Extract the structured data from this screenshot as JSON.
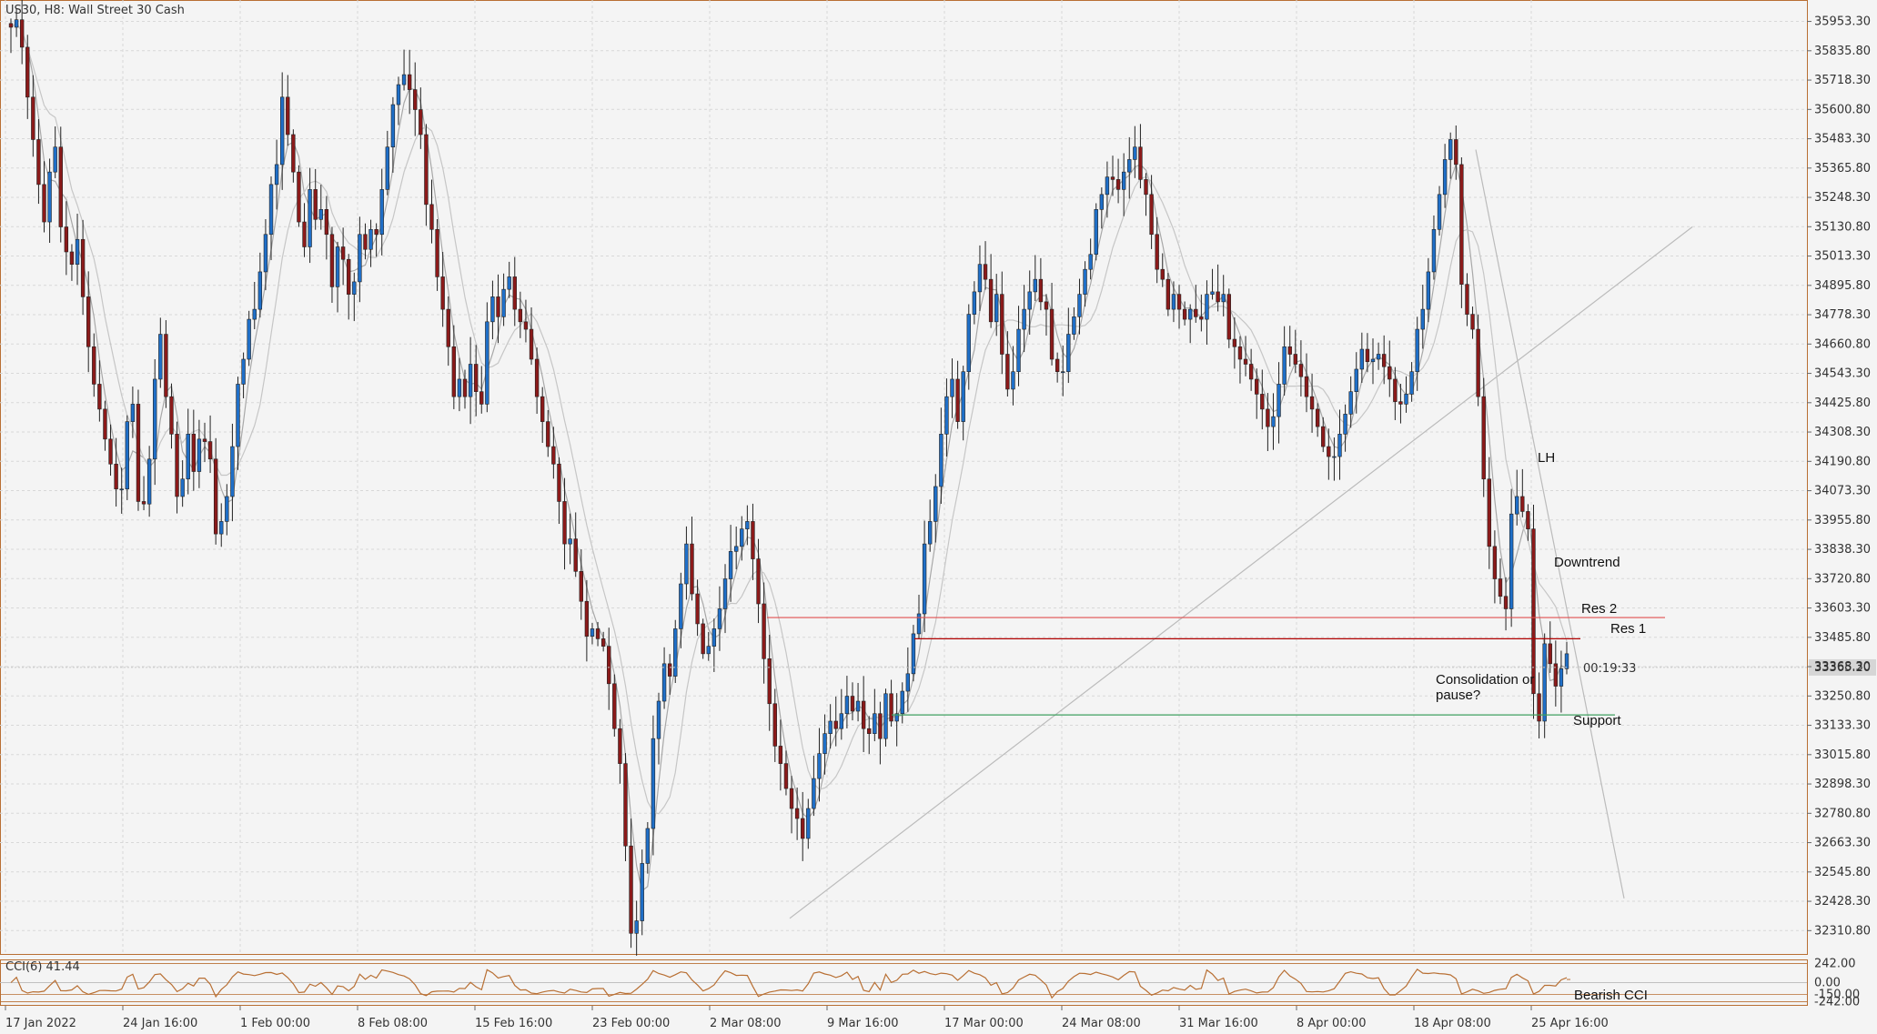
{
  "header": {
    "symbol_label": "US30, H8:  Wall Street 30 Cash"
  },
  "colors": {
    "bull": "#1f6fc8",
    "bear": "#8b1a1a",
    "grid": "#d8d8d8",
    "frame": "#b86f33",
    "ma": "#9a9a9a",
    "cci": "#b86f33",
    "res2": "#e05050",
    "res1": "#b00000",
    "support": "#3fa060",
    "trend": "#bbbbbb"
  },
  "chart_data": {
    "type": "candlestick",
    "y_ticks": [
      "35953.30",
      "35835.80",
      "35718.30",
      "35600.80",
      "35483.30",
      "35365.80",
      "35248.30",
      "35130.80",
      "35013.30",
      "34895.80",
      "34778.30",
      "34660.80",
      "34543.30",
      "34425.80",
      "34308.30",
      "34190.80",
      "34073.30",
      "33955.80",
      "33838.30",
      "33720.80",
      "33603.30",
      "33485.80",
      "33368.30",
      "33250.80",
      "33133.30",
      "33015.80",
      "32898.30",
      "32780.80",
      "32663.30",
      "32545.80",
      "32428.30",
      "32310.80"
    ],
    "x_ticks": [
      "17 Jan 2022",
      "24 Jan 16:00",
      "1 Feb 00:00",
      "8 Feb 08:00",
      "15 Feb 16:00",
      "23 Feb 00:00",
      "2 Mar 08:00",
      "9 Mar 16:00",
      "17 Mar 00:00",
      "24 Mar 08:00",
      "31 Mar 16:00",
      "8 Apr 00:00",
      "18 Apr 08:00",
      "25 Apr 16:00"
    ],
    "ylim": [
      32250,
      36010
    ],
    "current_price": "33365.20",
    "countdown": "00:19:33",
    "candle_closes": [
      35930,
      35960,
      35850,
      35650,
      35480,
      35300,
      35150,
      35350,
      35450,
      35130,
      35030,
      34980,
      35080,
      34850,
      34650,
      34500,
      34400,
      34280,
      34180,
      34080,
      34080,
      34350,
      34420,
      34030,
      34020,
      34200,
      34520,
      34700,
      34450,
      34300,
      34050,
      34120,
      34300,
      34150,
      34280,
      34270,
      34200,
      33900,
      33950,
      34050,
      34250,
      34500,
      34600,
      34760,
      34800,
      34950,
      35100,
      35300,
      35380,
      35650,
      35500,
      35350,
      35150,
      35050,
      35280,
      35160,
      35200,
      35100,
      34890,
      35050,
      35000,
      34860,
      34910,
      35100,
      35040,
      35120,
      35100,
      35280,
      35450,
      35620,
      35700,
      35740,
      35680,
      35600,
      35500,
      35220,
      35120,
      34930,
      34800,
      34650,
      34450,
      34520,
      34450,
      34580,
      34470,
      34420,
      34750,
      34850,
      34770,
      34880,
      34930,
      34800,
      34750,
      34720,
      34600,
      34450,
      34350,
      34250,
      34180,
      34030,
      33860,
      33880,
      33750,
      33630,
      33490,
      33520,
      33480,
      33450,
      33300,
      33120,
      32980,
      32650,
      32300,
      32350,
      32580,
      32720,
      33080,
      33230,
      33380,
      33330,
      33520,
      33700,
      33860,
      33660,
      33540,
      33420,
      33450,
      33520,
      33600,
      33720,
      33830,
      33850,
      33920,
      33950,
      33800,
      33620,
      33400,
      33220,
      33050,
      32980,
      32880,
      32800,
      32760,
      32680,
      32800,
      32920,
      33020,
      33100,
      33150,
      33120,
      33180,
      33250,
      33190,
      33230,
      33120,
      33100,
      33180,
      33080,
      33260,
      33150,
      33180,
      33270,
      33340,
      33500,
      33580,
      33860,
      33950,
      34090,
      34300,
      34450,
      34520,
      34350,
      34550,
      34780,
      34870,
      34980,
      34920,
      34750,
      34860,
      34620,
      34480,
      34550,
      34720,
      34800,
      34870,
      34920,
      34830,
      34800,
      34600,
      34550,
      34550,
      34700,
      34770,
      34860,
      34960,
      35020,
      35200,
      35260,
      35330,
      35320,
      35280,
      35350,
      35400,
      35450,
      35320,
      35260,
      35100,
      34960,
      34920,
      34800,
      34860,
      34800,
      34760,
      34800,
      34770,
      34760,
      34860,
      34870,
      34830,
      34860,
      34680,
      34650,
      34600,
      34580,
      34520,
      34460,
      34400,
      34330,
      34370,
      34500,
      34650,
      34620,
      34580,
      34530,
      34450,
      34400,
      34330,
      34250,
      34210,
      34210,
      34300,
      34380,
      34470,
      34560,
      34640,
      34590,
      34600,
      34620,
      34570,
      34520,
      34430,
      34420,
      34460,
      34550,
      34720,
      34800,
      34950,
      35120,
      35260,
      35400,
      35480,
      35380,
      34900,
      34780,
      34720,
      34450,
      34120,
      33850,
      33720,
      33650,
      33600,
      33980,
      34050,
      33990,
      33920,
      33260,
      33150,
      33460,
      33380,
      33290,
      33360,
      33420
    ],
    "annotations": {
      "lh": "LH",
      "downtrend": "Downtrend",
      "res2": "Res 2",
      "res1": "Res 1",
      "consolidation": "Consolidation or pause?",
      "support": "Support",
      "bearish_cci": "Bearish CCI"
    },
    "levels": {
      "res2": 33565,
      "res1": 33480,
      "support": 33175
    },
    "cci": {
      "label": "CCI(6)  41.44",
      "ticks": [
        "242.00",
        "0.00",
        "-150.00",
        "-242.00"
      ],
      "ylim": [
        -260,
        260
      ]
    }
  }
}
